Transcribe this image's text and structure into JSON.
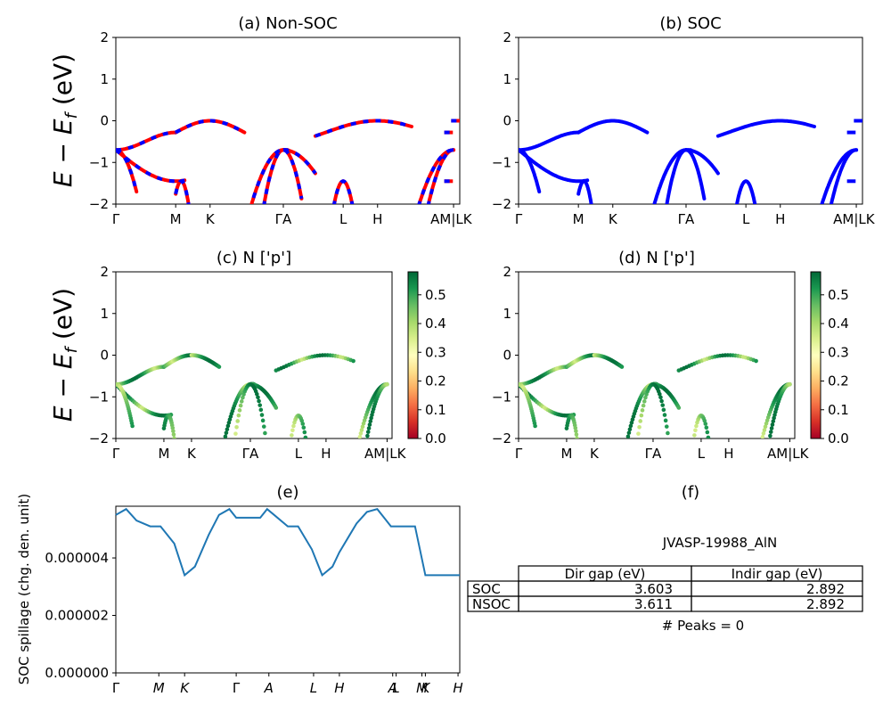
{
  "colors": {
    "nonsoc": "#ff0000",
    "soc": "#0000ff",
    "spillage": "#1f77b4",
    "cmap": [
      "#a50026",
      "#d73027",
      "#f46d43",
      "#fdae61",
      "#fee08b",
      "#ffffbf",
      "#d9ef8b",
      "#a6d96a",
      "#66bd63",
      "#1a9850",
      "#006837"
    ]
  },
  "chart_data": [
    {
      "panel": "a",
      "type": "line",
      "title": "(a) Non-SOC",
      "ylabel": "E − E_f (eV)",
      "ylim": [
        -2,
        2
      ],
      "yticks": [
        "2",
        "1",
        "0",
        "−1",
        "−2"
      ],
      "xticks": [
        "Γ",
        "M",
        "K",
        "ΓA",
        "L",
        "H",
        "AM|LK"
      ],
      "series": [
        {
          "color": "#ff0000",
          "style": "solid"
        },
        {
          "color": "#0000ff",
          "style": "dashed"
        }
      ]
    },
    {
      "panel": "b",
      "type": "line",
      "title": "(b) SOC",
      "ylim": [
        -2,
        2
      ],
      "yticks": [
        "2",
        "1",
        "0",
        "−1",
        "−2"
      ],
      "xticks": [
        "Γ",
        "M",
        "K",
        "ΓA",
        "L",
        "H",
        "AM|LK"
      ],
      "series": [
        {
          "color": "#0000ff",
          "style": "solid"
        }
      ]
    },
    {
      "panel": "c",
      "type": "scatter",
      "title": "(c)  N ['p']",
      "ylabel": "E − E_f (eV)",
      "ylim": [
        -2,
        2
      ],
      "yticks": [
        "2",
        "1",
        "0",
        "−1",
        "−2"
      ],
      "xticks": [
        "Γ",
        "M",
        "K",
        "ΓA",
        "L",
        "H",
        "AM|LK"
      ],
      "colorbar": {
        "ticks": [
          "0.0",
          "0.1",
          "0.2",
          "0.3",
          "0.4",
          "0.5"
        ],
        "range": [
          0,
          0.58
        ],
        "colormap": "RdYlGn"
      }
    },
    {
      "panel": "d",
      "type": "scatter",
      "title": "(d) N ['p']",
      "ylim": [
        -2,
        2
      ],
      "yticks": [
        "2",
        "1",
        "0",
        "−1",
        "−2"
      ],
      "xticks": [
        "Γ",
        "M",
        "K",
        "ΓA",
        "L",
        "H",
        "AM|LK"
      ],
      "colorbar": {
        "ticks": [
          "0.0",
          "0.1",
          "0.2",
          "0.3",
          "0.4",
          "0.5"
        ],
        "range": [
          0,
          0.58
        ],
        "colormap": "RdYlGn"
      }
    },
    {
      "panel": "e",
      "type": "line",
      "title": "(e)",
      "ylabel": "SOC spillage (chg. den. unit)",
      "ylim": [
        0,
        5.8e-06
      ],
      "yticks": [
        "0.000000",
        "0.000002",
        "0.000004"
      ],
      "yticks_values": [
        0,
        2e-06,
        4e-06
      ],
      "xticks": [
        "Γ",
        "M",
        "K",
        "Γ",
        "A",
        "L",
        "H",
        "A",
        "L",
        "M",
        "K",
        "H"
      ],
      "x": [
        0,
        0.03,
        0.06,
        0.1,
        0.13,
        0.17,
        0.2,
        0.23,
        0.27,
        0.3,
        0.33,
        0.35,
        0.36,
        0.38,
        0.4,
        0.42,
        0.44,
        0.46,
        0.5,
        0.53,
        0.57,
        0.6,
        0.63,
        0.65,
        0.68,
        0.7,
        0.73,
        0.76,
        0.78,
        0.8,
        0.85,
        0.87,
        0.9,
        0.95,
        1.0
      ],
      "y": [
        5.5e-06,
        5.7e-06,
        5.3e-06,
        5.1e-06,
        5.1e-06,
        4.5e-06,
        3.4e-06,
        3.7e-06,
        4.8e-06,
        5.5e-06,
        5.7e-06,
        5.4e-06,
        5.4e-06,
        5.4e-06,
        5.4e-06,
        5.4e-06,
        5.7e-06,
        5.5e-06,
        5.1e-06,
        5.1e-06,
        4.3e-06,
        3.4e-06,
        3.7e-06,
        4.2e-06,
        4.8e-06,
        5.2e-06,
        5.6e-06,
        5.7e-06,
        5.4e-06,
        5.1e-06,
        5.1e-06,
        5.1e-06,
        3.4e-06,
        3.4e-06,
        3.4e-06
      ]
    }
  ],
  "panel_f": {
    "title": "(f)",
    "material": "JVASP-19988_AlN",
    "table": {
      "headers": [
        "",
        "Dir gap (eV)",
        "Indir gap (eV)"
      ],
      "rows": [
        {
          "label": "SOC",
          "dir": "3.603",
          "indir": "2.892"
        },
        {
          "label": "NSOC",
          "dir": "3.611",
          "indir": "2.892"
        }
      ]
    },
    "peaks": "# Peaks = 0"
  }
}
